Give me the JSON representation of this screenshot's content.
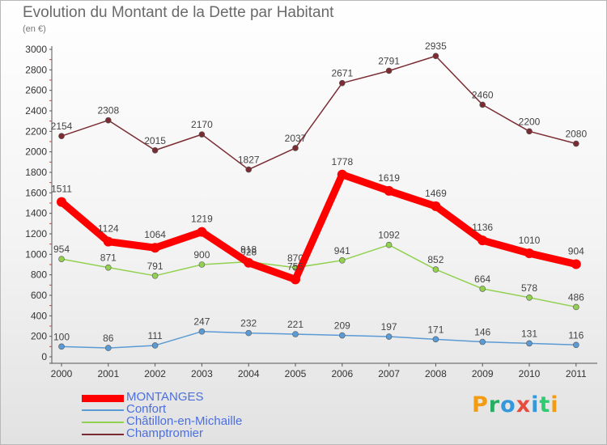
{
  "header": {
    "title": "Evolution du Montant de la Dette par Habitant",
    "subtitle": "(en €)"
  },
  "logo": {
    "text": "Proxiti",
    "colors": [
      "#f39c12",
      "#27ae60",
      "#3498db",
      "#e74c3c",
      "#3498db",
      "#2ecc71",
      "#f39c12"
    ]
  },
  "chart_data": {
    "type": "line",
    "x": [
      "2000",
      "2001",
      "2002",
      "2003",
      "2004",
      "2005",
      "2006",
      "2007",
      "2008",
      "2009",
      "2010",
      "2011"
    ],
    "ylim": [
      0,
      3000
    ],
    "yticks": [
      0,
      200,
      400,
      600,
      800,
      1000,
      1200,
      1400,
      1600,
      1800,
      2000,
      2200,
      2400,
      2600,
      2800,
      3000
    ],
    "grid": false,
    "legend_position": "bottom-left",
    "series": [
      {
        "name": "MONTANGES",
        "color": "#ff0000",
        "values": [
          1511,
          1124,
          1064,
          1219,
          918,
          755,
          1778,
          1619,
          1469,
          1136,
          1010,
          904
        ]
      },
      {
        "name": "Confort",
        "color": "#5b9bd5",
        "values": [
          100,
          86,
          111,
          247,
          232,
          221,
          209,
          197,
          171,
          146,
          131,
          116
        ]
      },
      {
        "name": "Châtillon-en-Michaille",
        "color": "#92d050",
        "values": [
          954,
          871,
          791,
          900,
          928,
          870,
          941,
          1092,
          852,
          664,
          578,
          486
        ]
      },
      {
        "name": "Champtromier",
        "color": "#7b2c33",
        "values": [
          2154,
          2308,
          2015,
          2170,
          1827,
          2037,
          2671,
          2791,
          2935,
          2460,
          2200,
          2080
        ]
      }
    ]
  }
}
